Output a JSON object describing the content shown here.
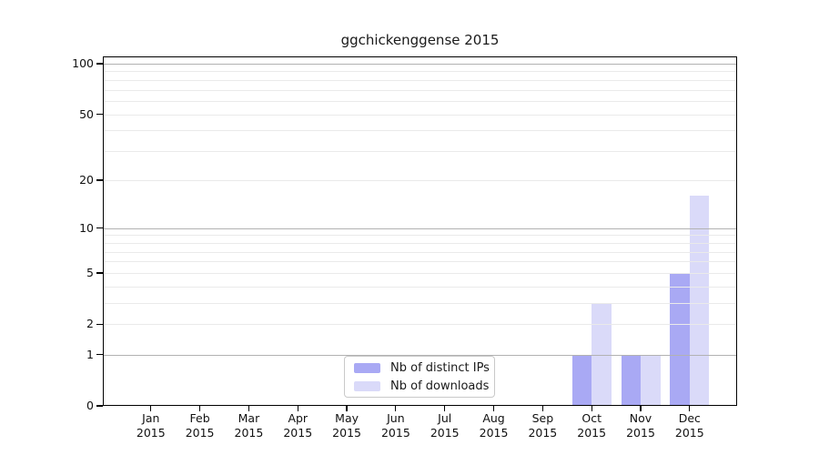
{
  "chart_data": {
    "type": "bar",
    "title": "ggchickenggense 2015",
    "categories": [
      "Jan",
      "Feb",
      "Mar",
      "Apr",
      "May",
      "Jun",
      "Jul",
      "Aug",
      "Sep",
      "Oct",
      "Nov",
      "Dec"
    ],
    "year": "2015",
    "series": [
      {
        "name": "Nb of distinct IPs",
        "color": "#a9a9f4",
        "values": [
          0,
          0,
          0,
          0,
          0,
          0,
          0,
          0,
          0,
          1,
          1,
          5
        ]
      },
      {
        "name": "Nb of downloads",
        "color": "#dadaf9",
        "values": [
          0,
          0,
          0,
          0,
          0,
          0,
          0,
          0,
          0,
          3,
          1,
          16
        ]
      }
    ],
    "yticks": [
      0,
      1,
      2,
      5,
      10,
      20,
      50,
      100
    ],
    "major_gridlines": [
      1,
      10,
      100
    ],
    "minor_gridlines": [
      2,
      3,
      4,
      5,
      6,
      7,
      8,
      9,
      20,
      30,
      40,
      50,
      60,
      70,
      80,
      90
    ],
    "scale": "log10(1+y)",
    "ylim": [
      0,
      110
    ],
    "grid": true,
    "legend_position": "lower center inside",
    "colors": {
      "major_grid": "#b2b2b2",
      "minor_grid": "#eaeaea",
      "axis": "#000000",
      "background": "#ffffff"
    }
  }
}
